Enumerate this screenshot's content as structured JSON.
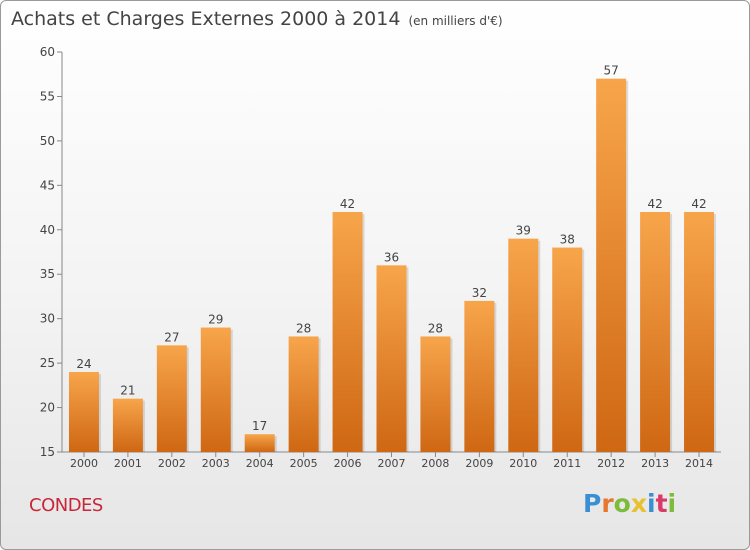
{
  "title": "Achats et Charges Externes 2000 à 2014",
  "unit": "(en milliers d'€)",
  "town": "CONDES",
  "logo": {
    "letters": [
      "P",
      "r",
      "o",
      "x",
      "i",
      "t",
      "i"
    ],
    "colors": [
      "#3a8fd4",
      "#e8772e",
      "#7dbb3a",
      "#e8c12e",
      "#3a8fd4",
      "#d93a6b",
      "#7dbb3a"
    ]
  },
  "colors": {
    "bar_top": "#f7a54b",
    "bar_bottom": "#cf6713",
    "axis": "#888888",
    "text": "#444444"
  },
  "chart_data": {
    "type": "bar",
    "title": "Achats et Charges Externes 2000 à 2014",
    "categories": [
      "2000",
      "2001",
      "2002",
      "2003",
      "2004",
      "2005",
      "2006",
      "2007",
      "2008",
      "2009",
      "2010",
      "2011",
      "2012",
      "2013",
      "2014"
    ],
    "values": [
      24,
      21,
      27,
      29,
      17,
      28,
      42,
      36,
      28,
      32,
      39,
      38,
      57,
      42,
      42
    ],
    "ylim": [
      15,
      60
    ],
    "yticks": [
      15,
      20,
      25,
      30,
      35,
      40,
      45,
      50,
      55,
      60
    ],
    "grid": false
  }
}
